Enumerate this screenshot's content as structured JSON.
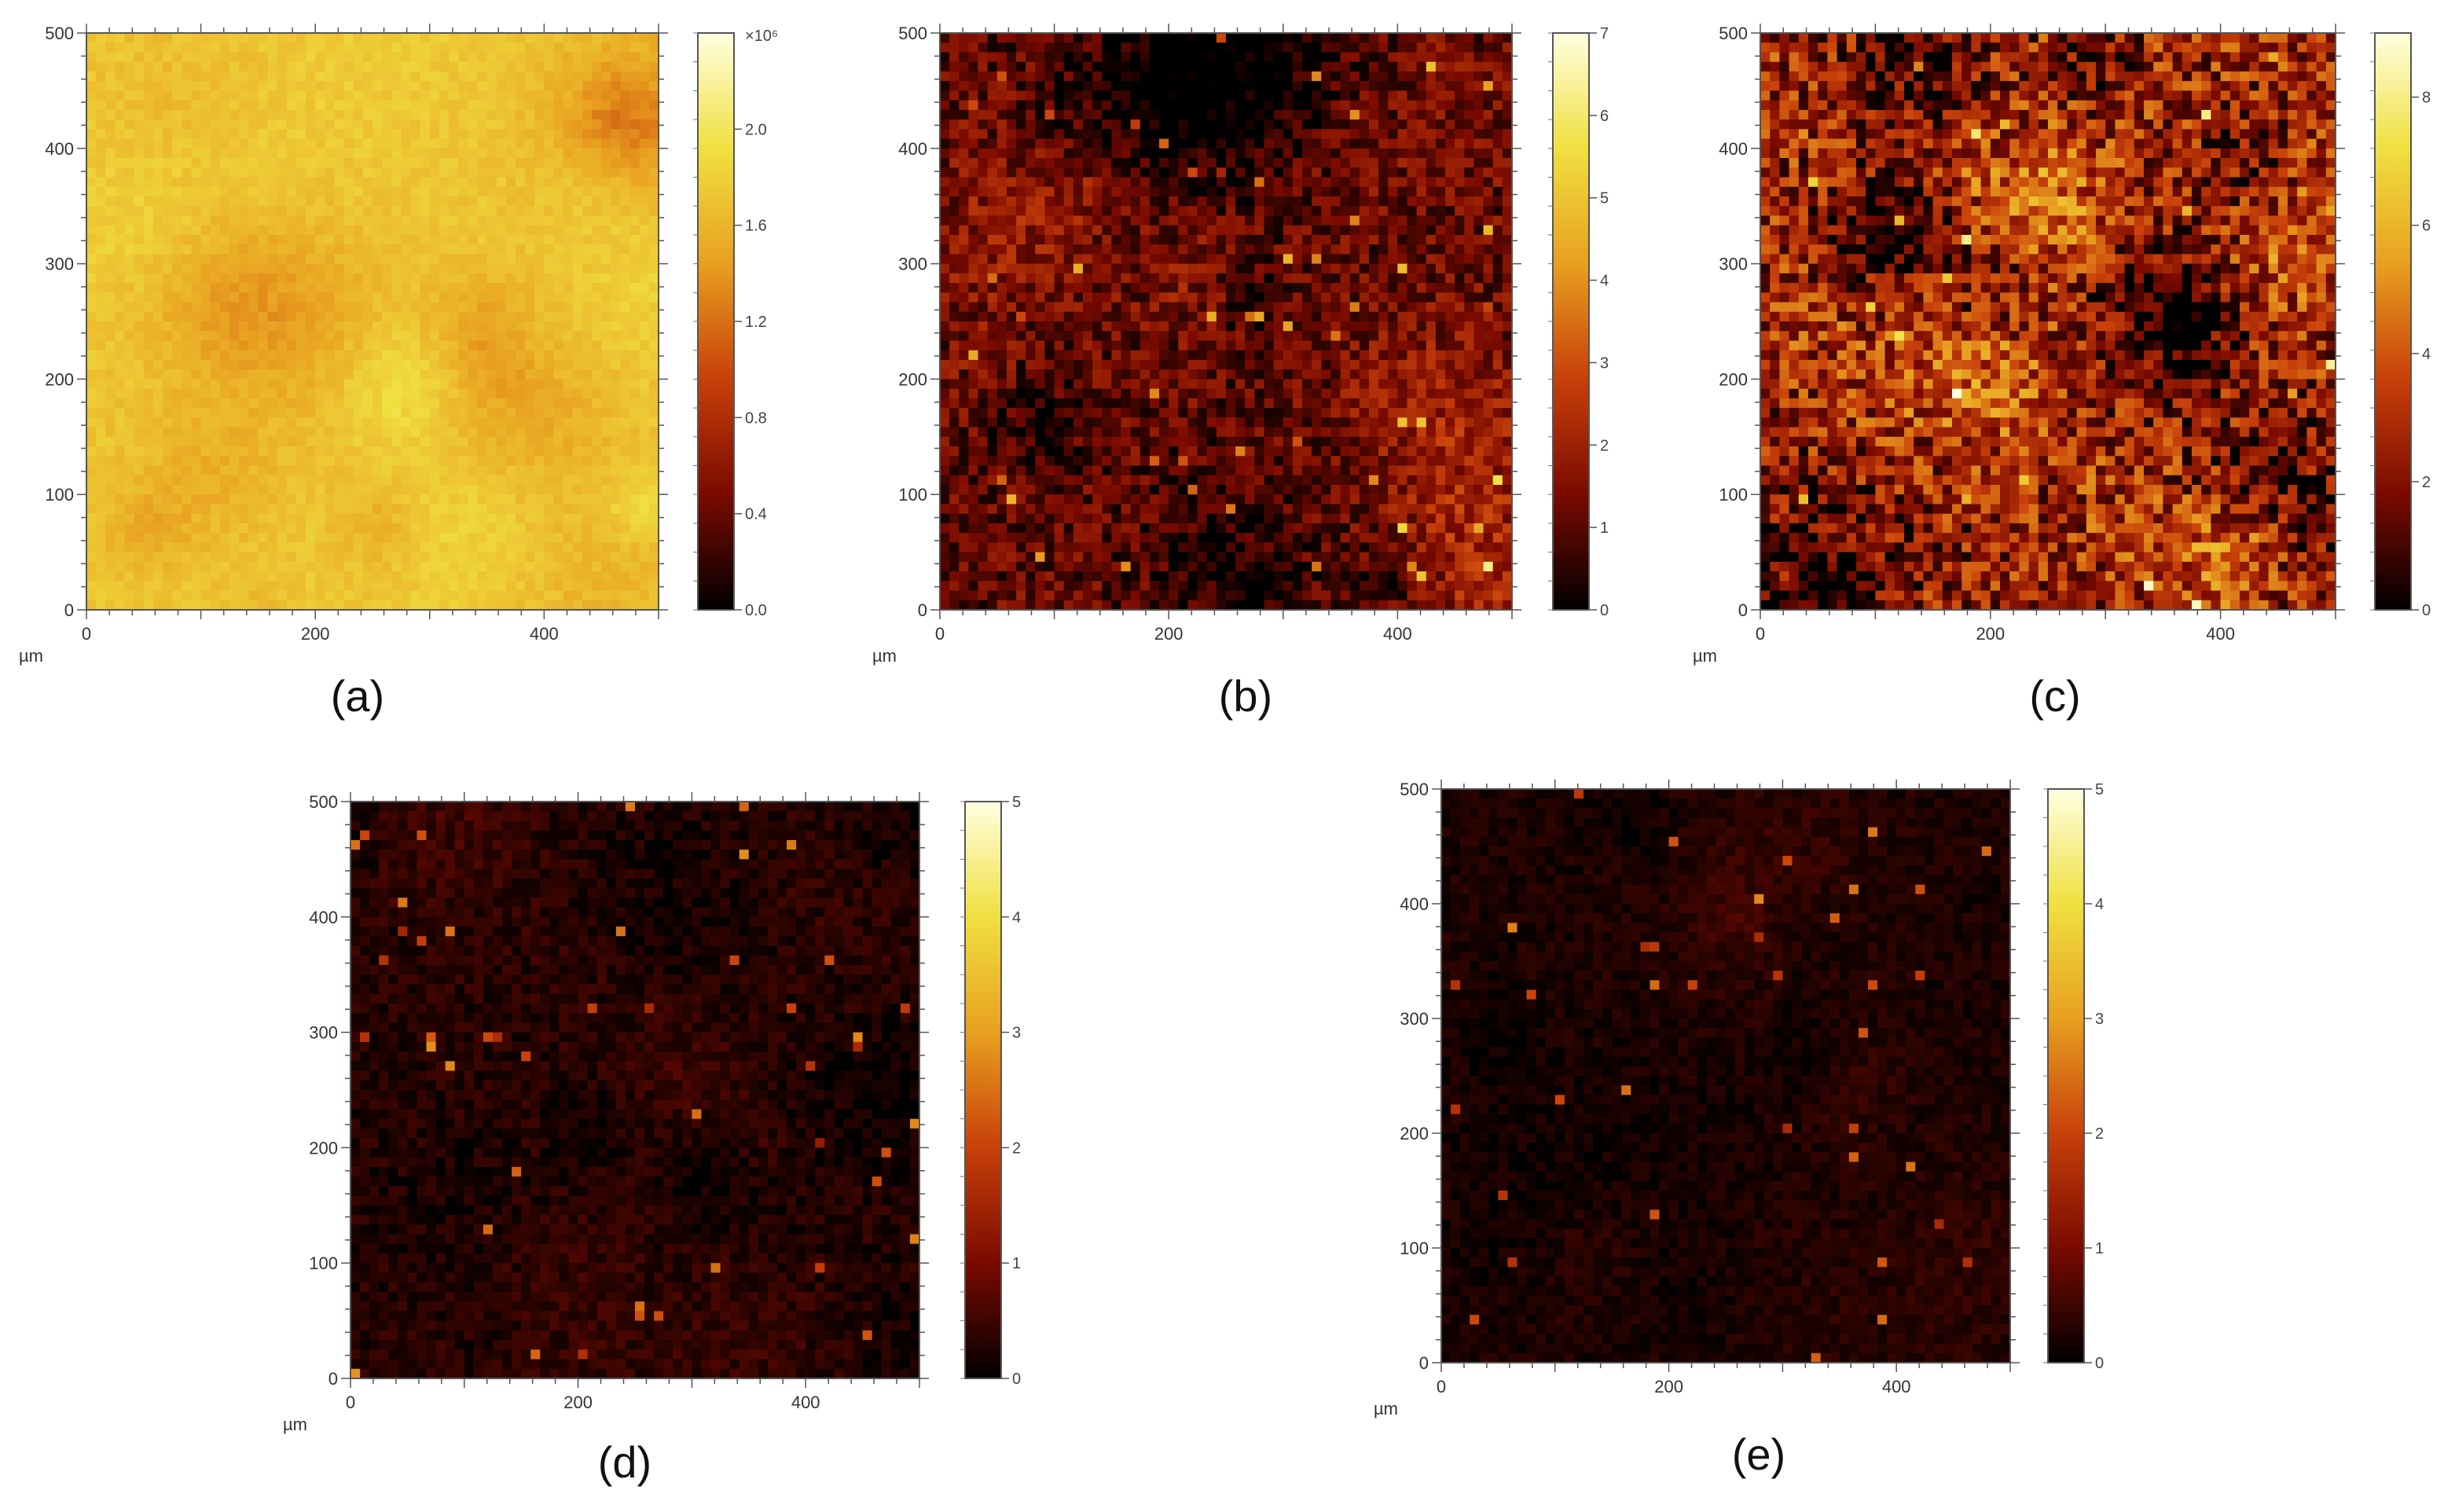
{
  "chart_data": [
    {
      "type": "heatmap",
      "panel_label": "(a)",
      "x_unit": "µm",
      "x_ticks": [
        "0",
        "200",
        "400"
      ],
      "y_ticks": [
        "0",
        "100",
        "200",
        "300",
        "400",
        "500"
      ],
      "xlim": [
        0,
        500
      ],
      "ylim": [
        0,
        500
      ],
      "colorbar_ticks": [
        "0.0",
        "0.4",
        "0.8",
        "1.2",
        "1.6",
        "2.0"
      ],
      "colorbar_exponent": "×10⁶",
      "colorbar_range": [
        0,
        2.4
      ],
      "mean_level": 0.72,
      "colormap": [
        "#000000",
        "#7a0a00",
        "#c8400a",
        "#e8a020",
        "#f0e040",
        "#ffffe0"
      ]
    },
    {
      "type": "heatmap",
      "panel_label": "(b)",
      "x_unit": "µm",
      "x_ticks": [
        "0",
        "200",
        "400"
      ],
      "y_ticks": [
        "0",
        "100",
        "200",
        "300",
        "400",
        "500"
      ],
      "xlim": [
        0,
        500
      ],
      "ylim": [
        0,
        500
      ],
      "colorbar_ticks": [
        "0",
        "1",
        "2",
        "3",
        "4",
        "5",
        "6",
        "7"
      ],
      "colorbar_range": [
        0,
        7
      ],
      "mean_level": 0.16,
      "colormap": [
        "#000000",
        "#7a0a00",
        "#c8400a",
        "#e8a020",
        "#f0e040",
        "#ffffe0"
      ]
    },
    {
      "type": "heatmap",
      "panel_label": "(c)",
      "x_unit": "µm",
      "x_ticks": [
        "0",
        "200",
        "400"
      ],
      "y_ticks": [
        "0",
        "100",
        "200",
        "300",
        "400",
        "500"
      ],
      "xlim": [
        0,
        500
      ],
      "ylim": [
        0,
        500
      ],
      "colorbar_ticks": [
        "0",
        "2",
        "4",
        "6",
        "8"
      ],
      "colorbar_range": [
        0,
        9
      ],
      "mean_level": 0.3,
      "colormap": [
        "#000000",
        "#7a0a00",
        "#c8400a",
        "#e8a020",
        "#f0e040",
        "#ffffe0"
      ]
    },
    {
      "type": "heatmap",
      "panel_label": "(d)",
      "x_unit": "µm",
      "x_ticks": [
        "0",
        "200",
        "400"
      ],
      "y_ticks": [
        "0",
        "100",
        "200",
        "300",
        "400",
        "500"
      ],
      "xlim": [
        0,
        500
      ],
      "ylim": [
        0,
        500
      ],
      "colorbar_ticks": [
        "0",
        "1",
        "2",
        "3",
        "4",
        "5"
      ],
      "colorbar_range": [
        0,
        5
      ],
      "mean_level": 0.06,
      "colormap": [
        "#000000",
        "#7a0a00",
        "#c8400a",
        "#e8a020",
        "#f0e040",
        "#ffffe0"
      ]
    },
    {
      "type": "heatmap",
      "panel_label": "(e)",
      "x_unit": "µm",
      "x_ticks": [
        "0",
        "200",
        "400"
      ],
      "y_ticks": [
        "0",
        "100",
        "200",
        "300",
        "400",
        "500"
      ],
      "xlim": [
        0,
        500
      ],
      "ylim": [
        0,
        500
      ],
      "colorbar_ticks": [
        "0",
        "1",
        "2",
        "3",
        "4",
        "5"
      ],
      "colorbar_range": [
        0,
        5
      ],
      "mean_level": 0.045,
      "colormap": [
        "#000000",
        "#7a0a00",
        "#c8400a",
        "#e8a020",
        "#f0e040",
        "#ffffe0"
      ]
    }
  ]
}
